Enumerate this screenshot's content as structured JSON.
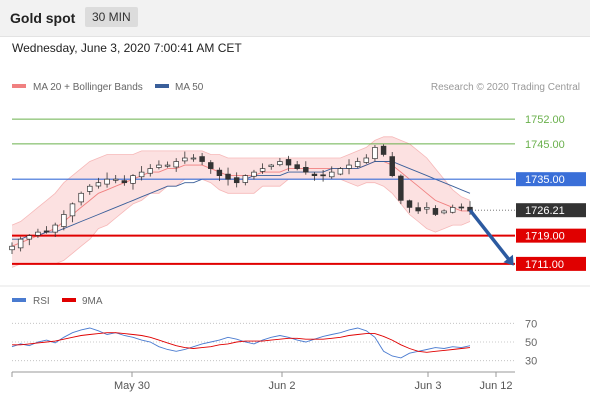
{
  "header": {
    "title": "Gold spot",
    "timeframe": "30 MIN"
  },
  "date_line": "Wednesday, June 3, 2020 7:00:41 AM CET",
  "legend": {
    "bollinger_label": "MA 20 + Bollinger Bands",
    "ma50_label": "MA 50",
    "credit": "Research © 2020 Trading Central"
  },
  "colors": {
    "bollinger": "#f08080",
    "band_fill": "#fcdede",
    "ma50": "#3a5f9a",
    "green_level": "#6ab04c",
    "blue_level": "#3a6fd8",
    "red_level": "#e00000",
    "current": "#333333",
    "arrow": "#2c5aa0",
    "rsi": "#4a7bd0",
    "rsi_ma": "#e00000",
    "candle_up": "#ffffff",
    "candle_down": "#333333"
  },
  "chart_data": [
    {
      "type": "candlestick",
      "y_range": [
        1707,
        1758
      ],
      "x_ticks": [
        "May 30",
        "Jun 2",
        "Jun 3",
        "Jun 12"
      ],
      "levels": [
        {
          "label": "1752.00",
          "value": 1752.0,
          "kind": "resistance-far"
        },
        {
          "label": "1745.00",
          "value": 1745.0,
          "kind": "resistance"
        },
        {
          "label": "1735.00",
          "value": 1735.0,
          "kind": "pivot"
        },
        {
          "label": "1726.21",
          "value": 1726.21,
          "kind": "current"
        },
        {
          "label": "1719.00",
          "value": 1719.0,
          "kind": "support"
        },
        {
          "label": "1711.00",
          "value": 1711.0,
          "kind": "support"
        }
      ],
      "projection": {
        "from": 1726.21,
        "to": 1711.0
      },
      "close_path": [
        1716,
        1718,
        1719,
        1720,
        1720,
        1722,
        1725,
        1728,
        1731,
        1733,
        1734,
        1735,
        1735,
        1734,
        1736,
        1737,
        1738,
        1739,
        1739,
        1740,
        1741,
        1741,
        1740,
        1738,
        1736,
        1735,
        1734,
        1736,
        1737,
        1738,
        1739,
        1740,
        1739,
        1738,
        1737,
        1736,
        1736,
        1737,
        1738,
        1739,
        1740,
        1741,
        1744,
        1742,
        1736,
        1729,
        1727,
        1726,
        1727,
        1725,
        1726,
        1727,
        1727,
        1726
      ],
      "ma20": [
        1716,
        1717,
        1718,
        1719,
        1720,
        1721,
        1723,
        1725,
        1727,
        1729,
        1731,
        1732,
        1733,
        1734,
        1735,
        1736,
        1737,
        1737,
        1738,
        1738,
        1739,
        1739,
        1739,
        1738,
        1737,
        1736,
        1736,
        1736,
        1736,
        1737,
        1737,
        1737,
        1738,
        1738,
        1738,
        1738,
        1738,
        1738,
        1738,
        1738,
        1738,
        1739,
        1740,
        1740,
        1739,
        1737,
        1735,
        1733,
        1731,
        1729,
        1728,
        1727,
        1726,
        1726
      ],
      "bb_upper": [
        1722,
        1723,
        1725,
        1727,
        1729,
        1731,
        1734,
        1736,
        1738,
        1740,
        1741,
        1742,
        1742,
        1742,
        1742,
        1743,
        1743,
        1743,
        1743,
        1743,
        1743,
        1743,
        1743,
        1742,
        1742,
        1741,
        1741,
        1741,
        1741,
        1741,
        1741,
        1741,
        1741,
        1741,
        1741,
        1741,
        1741,
        1741,
        1741,
        1742,
        1743,
        1744,
        1746,
        1747,
        1747,
        1746,
        1745,
        1743,
        1741,
        1738,
        1735,
        1732,
        1730,
        1729
      ],
      "bb_lower": [
        1710,
        1711,
        1711,
        1711,
        1711,
        1711,
        1712,
        1714,
        1716,
        1718,
        1721,
        1722,
        1724,
        1726,
        1728,
        1729,
        1731,
        1731,
        1733,
        1733,
        1735,
        1735,
        1735,
        1734,
        1732,
        1731,
        1731,
        1731,
        1731,
        1733,
        1733,
        1733,
        1735,
        1735,
        1735,
        1735,
        1735,
        1735,
        1735,
        1734,
        1733,
        1734,
        1734,
        1733,
        1731,
        1728,
        1725,
        1723,
        1721,
        1720,
        1721,
        1722,
        1722,
        1723
      ],
      "ma50": [
        1718,
        1718,
        1719,
        1719,
        1720,
        1720,
        1721,
        1722,
        1723,
        1724,
        1725,
        1726,
        1727,
        1728,
        1729,
        1730,
        1731,
        1732,
        1733,
        1733,
        1734,
        1734,
        1735,
        1735,
        1735,
        1735,
        1735,
        1735,
        1736,
        1736,
        1736,
        1736,
        1737,
        1737,
        1737,
        1737,
        1737,
        1738,
        1738,
        1738,
        1738,
        1739,
        1740,
        1740,
        1740,
        1739,
        1738,
        1737,
        1736,
        1735,
        1734,
        1733,
        1732,
        1731
      ]
    },
    {
      "type": "line",
      "legend": [
        "RSI",
        "9MA"
      ],
      "y_ticks": [
        70,
        50,
        30
      ],
      "y_range": [
        20,
        80
      ],
      "rsi": [
        45,
        48,
        46,
        50,
        52,
        49,
        55,
        60,
        63,
        65,
        62,
        58,
        60,
        57,
        55,
        52,
        50,
        45,
        42,
        40,
        42,
        45,
        48,
        50,
        52,
        55,
        53,
        50,
        48,
        52,
        55,
        57,
        55,
        52,
        50,
        53,
        56,
        58,
        60,
        63,
        65,
        62,
        55,
        40,
        35,
        33,
        38,
        40,
        42,
        44,
        43,
        45,
        44,
        46
      ],
      "rsi_ma": [
        47,
        47,
        48,
        49,
        50,
        51,
        53,
        55,
        57,
        58,
        59,
        60,
        60,
        59,
        58,
        57,
        55,
        52,
        49,
        46,
        44,
        43,
        44,
        45,
        47,
        48,
        50,
        51,
        51,
        51,
        52,
        53,
        54,
        54,
        53,
        53,
        53,
        54,
        55,
        57,
        58,
        59,
        59,
        56,
        52,
        47,
        43,
        40,
        39,
        40,
        41,
        42,
        43,
        44
      ]
    }
  ]
}
